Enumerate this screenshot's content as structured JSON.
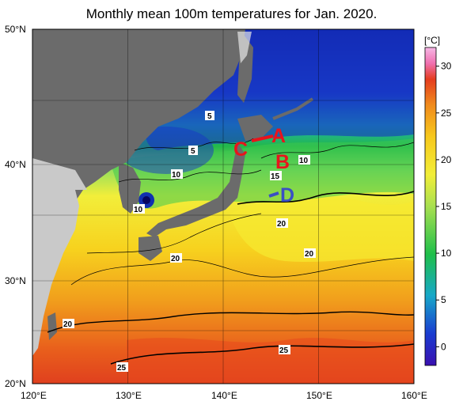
{
  "title": "Monthly mean 100m temperatures for Jan. 2020.",
  "axes": {
    "lat_ticks": [
      "50°N",
      "40°N",
      "30°N",
      "20°N"
    ],
    "lon_ticks": [
      "120°E",
      "130°E",
      "140°E",
      "150°E",
      "160°E"
    ]
  },
  "colorbar": {
    "unit": "[°C]",
    "ticks": [
      "30",
      "25",
      "20",
      "15",
      "10",
      "5",
      "0"
    ],
    "range": [
      -2,
      32
    ]
  },
  "contour_labels": [
    "5",
    "5",
    "10",
    "10",
    "10",
    "15",
    "20",
    "20",
    "20",
    "20",
    "25",
    "25"
  ],
  "regions": [
    {
      "label": "A",
      "color": "#e8141c"
    },
    {
      "label": "B",
      "color": "#e8141c"
    },
    {
      "label": "C",
      "color": "#e8141c"
    },
    {
      "label": "D",
      "color": "#3a4fc4"
    }
  ],
  "colors": {
    "land": "#6b6b6b",
    "asia_land": "#c9c9c9",
    "ice": "#e6e6e6"
  }
}
